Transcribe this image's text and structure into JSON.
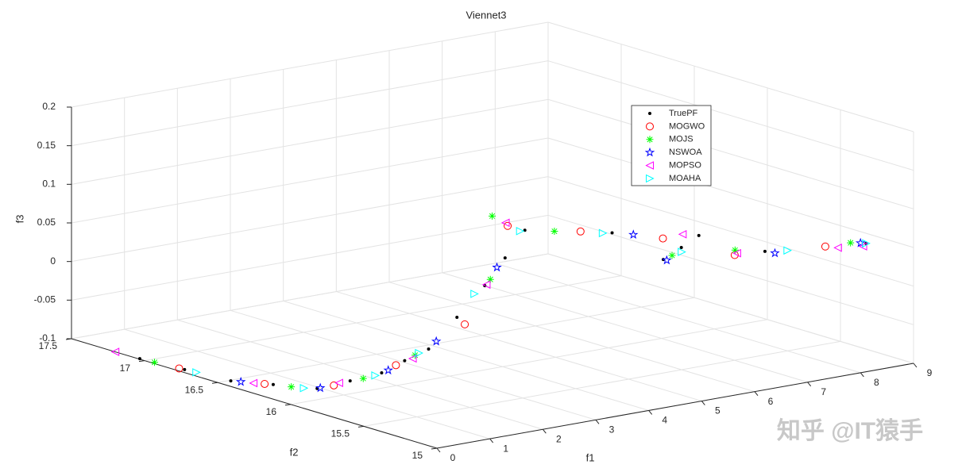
{
  "chart_data": {
    "type": "scatter3d",
    "title": "Viennet3",
    "xlabel": "f1",
    "ylabel": "f2",
    "zlabel": "f3",
    "xlim": [
      0,
      9
    ],
    "xticks": [
      0,
      1,
      2,
      3,
      4,
      5,
      6,
      7,
      8,
      9
    ],
    "ylim": [
      15,
      17.5
    ],
    "yticks": [
      15,
      15.5,
      16,
      16.5,
      17,
      17.5
    ],
    "zlim": [
      -0.1,
      0.2
    ],
    "zticks": [
      -0.1,
      -0.05,
      0,
      0.05,
      0.1,
      0.15,
      0.2
    ],
    "grid": true,
    "legend": "upper right",
    "series": [
      {
        "name": "TruePF",
        "color": "#000000",
        "marker": "dot",
        "x": [
          0.02,
          0.12,
          0.22,
          0.58,
          0.94,
          1.48,
          2.02,
          2.62,
          3.21,
          3.58,
          3.94,
          4.82,
          5.69,
          6.62,
          7.54,
          7.32,
          7.09,
          7.85,
          8.6
        ],
        "y": [
          17.04,
          16.77,
          16.49,
          16.33,
          16.16,
          16.13,
          16.11,
          16.17,
          16.22,
          16.16,
          16.1,
          16.28,
          16.46,
          16.2,
          15.94,
          15.98,
          16.02,
          15.6,
          15.18
        ],
        "z": [
          -0.1,
          -0.1,
          -0.1,
          -0.1,
          -0.1,
          -0.095,
          -0.09,
          -0.085,
          -0.08,
          -0.04,
          0,
          0.015,
          0.03,
          0.03,
          0.03,
          0.015,
          0,
          0.025,
          0.05
        ]
      },
      {
        "name": "MOGWO",
        "color": "#ff0000",
        "marker": "circle",
        "x": [
          0.1,
          0.5,
          1.2,
          2.4,
          3.7,
          5.2,
          6.3,
          7.0,
          7.5,
          8.3
        ],
        "y": [
          16.8,
          16.36,
          16.14,
          16.15,
          16.15,
          16.4,
          16.3,
          15.99,
          15.68,
          15.35
        ],
        "z": [
          -0.1,
          -0.1,
          -0.098,
          -0.087,
          -0.05,
          0.045,
          0.03,
          0.03,
          0.02,
          0.04
        ]
      },
      {
        "name": "MOJS",
        "color": "#00ff00",
        "marker": "asterisk",
        "x": [
          0.05,
          0.7,
          1.7,
          2.9,
          4.1,
          5.1,
          6.0,
          7.2,
          7.7,
          8.5
        ],
        "y": [
          16.95,
          16.25,
          16.12,
          16.2,
          16.12,
          16.47,
          16.37,
          16.0,
          15.75,
          15.25
        ],
        "z": [
          -0.1,
          -0.1,
          -0.094,
          -0.083,
          0.005,
          0.055,
          0.03,
          0.005,
          0.02,
          0.048
        ]
      },
      {
        "name": "NSWOA",
        "color": "#0000ff",
        "marker": "star",
        "x": [
          0.3,
          1.0,
          2.2,
          3.3,
          4.5,
          6.8,
          7.1,
          7.9,
          8.55
        ],
        "y": [
          16.45,
          16.16,
          16.13,
          16.2,
          16.22,
          16.12,
          16.0,
          15.55,
          15.2
        ],
        "z": [
          -0.1,
          -0.1,
          -0.09,
          -0.07,
          0.01,
          0.03,
          0,
          0.025,
          0.05
        ]
      },
      {
        "name": "MOPSO",
        "color": "#ff00ff",
        "marker": "triangle-left",
        "x": [
          0,
          0.4,
          1.3,
          2.8,
          4.0,
          5.3,
          7.4,
          7.6,
          8.4,
          8.6
        ],
        "y": [
          17.2,
          16.4,
          16.14,
          16.18,
          16.11,
          16.45,
          16.0,
          15.7,
          15.3,
          15.2
        ],
        "z": [
          -0.1,
          -0.1,
          -0.096,
          -0.085,
          0,
          0.045,
          0.03,
          0.02,
          0.04,
          0.045
        ]
      },
      {
        "name": "MOAHA",
        "color": "#00ffff",
        "marker": "triangle-right",
        "x": [
          0.15,
          0.8,
          1.9,
          3.0,
          3.8,
          5.6,
          6.5,
          7.3,
          8.0,
          8.6
        ],
        "y": [
          16.7,
          16.2,
          16.11,
          16.21,
          16.12,
          16.46,
          16.22,
          15.97,
          15.5,
          15.18
        ],
        "z": [
          -0.1,
          -0.1,
          -0.092,
          -0.082,
          -0.01,
          0.03,
          0.03,
          0.01,
          0.03,
          0.05
        ]
      }
    ]
  },
  "watermark": "知乎 @IT猿手"
}
